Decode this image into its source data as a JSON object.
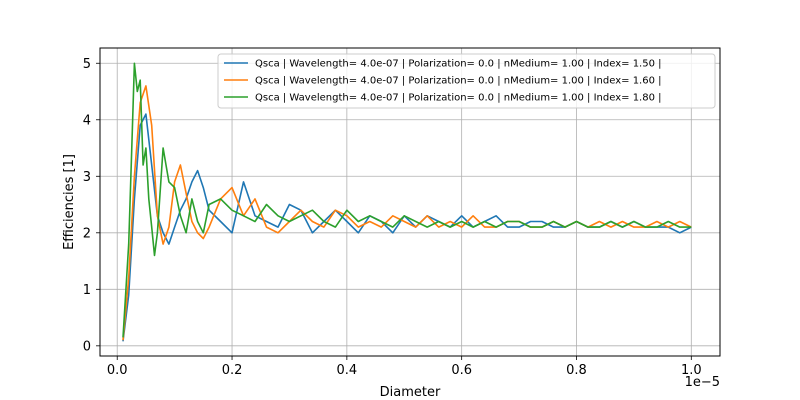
{
  "chart_data": {
    "type": "line",
    "xlabel": "Diameter",
    "ylabel": "Efficiencies  [1]",
    "x_offset_label": "1e−5",
    "xlim": [
      -0.03,
      1.05
    ],
    "ylim": [
      -0.18,
      5.27
    ],
    "x_ticks": [
      0.0,
      0.2,
      0.4,
      0.6,
      0.8,
      1.0
    ],
    "x_tick_labels": [
      "0.0",
      "0.2",
      "0.4",
      "0.6",
      "0.8",
      "1.0"
    ],
    "y_ticks": [
      0,
      1,
      2,
      3,
      4,
      5
    ],
    "y_tick_labels": [
      "0",
      "1",
      "2",
      "3",
      "4",
      "5"
    ],
    "grid": true,
    "legend_position": "top-right",
    "series": [
      {
        "name": "Qsca | Wavelength= 4.0e-07 | Polarization= 0.0 | nMedium= 1.00 | Index= 1.50 |",
        "color": "#1f77b4",
        "x": [
          0.01,
          0.02,
          0.03,
          0.04,
          0.05,
          0.06,
          0.07,
          0.08,
          0.09,
          0.1,
          0.11,
          0.12,
          0.13,
          0.14,
          0.15,
          0.16,
          0.18,
          0.2,
          0.22,
          0.24,
          0.26,
          0.28,
          0.3,
          0.32,
          0.34,
          0.36,
          0.38,
          0.4,
          0.42,
          0.44,
          0.46,
          0.48,
          0.5,
          0.52,
          0.54,
          0.56,
          0.58,
          0.6,
          0.62,
          0.64,
          0.66,
          0.68,
          0.7,
          0.72,
          0.74,
          0.76,
          0.78,
          0.8,
          0.82,
          0.84,
          0.86,
          0.88,
          0.9,
          0.92,
          0.94,
          0.96,
          0.98,
          1.0
        ],
        "y": [
          0.08,
          0.9,
          2.6,
          3.9,
          4.1,
          3.2,
          2.3,
          2.0,
          1.8,
          2.1,
          2.4,
          2.6,
          2.9,
          3.1,
          2.8,
          2.4,
          2.2,
          2.0,
          2.9,
          2.3,
          2.2,
          2.1,
          2.5,
          2.4,
          2.0,
          2.2,
          2.4,
          2.2,
          2.0,
          2.3,
          2.2,
          2.0,
          2.3,
          2.1,
          2.3,
          2.2,
          2.1,
          2.3,
          2.1,
          2.2,
          2.3,
          2.1,
          2.1,
          2.2,
          2.2,
          2.1,
          2.1,
          2.2,
          2.1,
          2.1,
          2.2,
          2.1,
          2.2,
          2.1,
          2.1,
          2.1,
          2.0,
          2.1
        ]
      },
      {
        "name": "Qsca | Wavelength= 4.0e-07 | Polarization= 0.0 | nMedium= 1.00 | Index= 1.60 |",
        "color": "#ff7f0e",
        "x": [
          0.01,
          0.02,
          0.03,
          0.04,
          0.05,
          0.06,
          0.07,
          0.08,
          0.09,
          0.1,
          0.11,
          0.12,
          0.13,
          0.14,
          0.15,
          0.16,
          0.18,
          0.2,
          0.22,
          0.24,
          0.26,
          0.28,
          0.3,
          0.32,
          0.34,
          0.36,
          0.38,
          0.4,
          0.42,
          0.44,
          0.46,
          0.48,
          0.5,
          0.52,
          0.54,
          0.56,
          0.58,
          0.6,
          0.62,
          0.64,
          0.66,
          0.68,
          0.7,
          0.72,
          0.74,
          0.76,
          0.78,
          0.8,
          0.82,
          0.84,
          0.86,
          0.88,
          0.9,
          0.92,
          0.94,
          0.96,
          0.98,
          1.0
        ],
        "y": [
          0.1,
          1.2,
          3.0,
          4.3,
          4.6,
          3.9,
          2.3,
          1.8,
          2.1,
          2.9,
          3.2,
          2.7,
          2.2,
          2.0,
          1.9,
          2.1,
          2.6,
          2.8,
          2.3,
          2.6,
          2.1,
          2.0,
          2.2,
          2.4,
          2.2,
          2.1,
          2.4,
          2.3,
          2.1,
          2.2,
          2.1,
          2.3,
          2.2,
          2.1,
          2.3,
          2.1,
          2.2,
          2.1,
          2.3,
          2.1,
          2.1,
          2.2,
          2.2,
          2.1,
          2.1,
          2.2,
          2.1,
          2.2,
          2.1,
          2.2,
          2.1,
          2.2,
          2.1,
          2.1,
          2.2,
          2.1,
          2.2,
          2.1
        ]
      },
      {
        "name": "Qsca | Wavelength= 4.0e-07 | Polarization= 0.0 | nMedium= 1.00 | Index= 1.80 |",
        "color": "#2ca02c",
        "x": [
          0.01,
          0.02,
          0.025,
          0.03,
          0.035,
          0.04,
          0.045,
          0.05,
          0.055,
          0.06,
          0.065,
          0.07,
          0.08,
          0.09,
          0.1,
          0.11,
          0.12,
          0.13,
          0.14,
          0.15,
          0.16,
          0.18,
          0.2,
          0.22,
          0.24,
          0.26,
          0.28,
          0.3,
          0.32,
          0.34,
          0.36,
          0.38,
          0.4,
          0.42,
          0.44,
          0.46,
          0.48,
          0.5,
          0.52,
          0.54,
          0.56,
          0.58,
          0.6,
          0.62,
          0.64,
          0.66,
          0.68,
          0.7,
          0.72,
          0.74,
          0.76,
          0.78,
          0.8,
          0.82,
          0.84,
          0.86,
          0.88,
          0.9,
          0.92,
          0.94,
          0.96,
          0.98,
          1.0
        ],
        "y": [
          0.15,
          1.8,
          3.4,
          5.0,
          4.5,
          4.7,
          3.2,
          3.5,
          2.6,
          2.1,
          1.6,
          2.0,
          3.5,
          2.9,
          2.8,
          2.3,
          2.0,
          2.6,
          2.2,
          2.0,
          2.5,
          2.6,
          2.4,
          2.3,
          2.2,
          2.5,
          2.3,
          2.2,
          2.3,
          2.4,
          2.2,
          2.1,
          2.4,
          2.2,
          2.3,
          2.2,
          2.1,
          2.3,
          2.2,
          2.1,
          2.2,
          2.1,
          2.2,
          2.1,
          2.2,
          2.1,
          2.2,
          2.2,
          2.1,
          2.1,
          2.2,
          2.1,
          2.2,
          2.1,
          2.1,
          2.2,
          2.1,
          2.2,
          2.1,
          2.1,
          2.2,
          2.1,
          2.1
        ]
      }
    ]
  }
}
